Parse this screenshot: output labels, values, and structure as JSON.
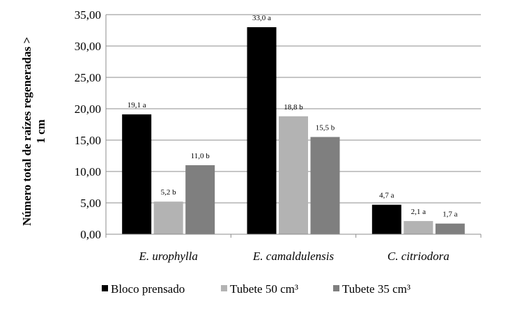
{
  "chart_data": {
    "type": "bar",
    "ylabel_lines": [
      "Número total de raízes regeneradas >",
      "1 cm"
    ],
    "categories": [
      "E. urophylla",
      "E. camaldulensis",
      "C. citriodora"
    ],
    "ylim": [
      0,
      35
    ],
    "yticks": [
      "0,00",
      "5,00",
      "10,00",
      "15,00",
      "20,00",
      "25,00",
      "30,00",
      "35,00"
    ],
    "ytick_values": [
      0,
      5,
      10,
      15,
      20,
      25,
      30,
      35
    ],
    "grid": true,
    "legend_position": "bottom",
    "series": [
      {
        "name": "Bloco prensado",
        "color": "#000000",
        "values": [
          19.1,
          33.0,
          4.7
        ],
        "labels": [
          "19,1 a",
          "33,0 a",
          "4,7 a"
        ]
      },
      {
        "name": "Tubete 50 cm³",
        "color": "#b3b3b3",
        "values": [
          5.2,
          18.8,
          2.1
        ],
        "labels": [
          "5,2 b",
          "18,8 b",
          "2,1 a"
        ]
      },
      {
        "name": "Tubete 35 cm³",
        "color": "#7f7f7f",
        "values": [
          11.0,
          15.5,
          1.7
        ],
        "labels": [
          "11,0 b",
          "15,5 b",
          "1,7 a"
        ]
      }
    ]
  }
}
